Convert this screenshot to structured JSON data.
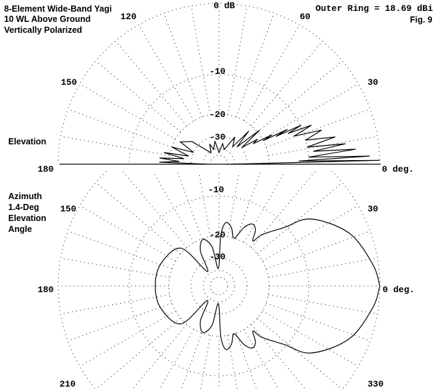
{
  "title_lines": [
    "8-Element Wide-Band Yagi",
    "10 WL Above Ground",
    "Vertically Polarized"
  ],
  "outer_ring": "Outer Ring = 18.69 dBi",
  "figure": "Fig. 9",
  "elevation_label": "Elevation",
  "azimuth_label_lines": [
    "Azimuth",
    "1.4-Deg",
    "Elevation",
    "Angle"
  ],
  "colors": {
    "trace": "#000000",
    "grid": "#000000",
    "background": "#ffffff"
  },
  "chart_data": [
    {
      "type": "polar-line",
      "name_label": "Elevation",
      "scale": "ARRL log (0.89 per 2 dB)",
      "rings_db": [
        0,
        -10,
        -20,
        -30,
        -40,
        -50
      ],
      "ring_labels": [
        "0 dB",
        "-10",
        "-20",
        "-30"
      ],
      "angle_labels": [
        "0 deg.",
        "30",
        "60",
        "120",
        "150",
        "180"
      ],
      "grid": true,
      "range_deg": [
        0,
        180
      ],
      "points": [
        [
          0,
          -45
        ],
        [
          1.4,
          0
        ],
        [
          2.3,
          -12
        ],
        [
          3.1,
          -1.1
        ],
        [
          4.5,
          -10
        ],
        [
          6.3,
          -2.7
        ],
        [
          7.8,
          -9
        ],
        [
          9.2,
          -3.9
        ],
        [
          11,
          -10
        ],
        [
          13.2,
          -5.1
        ],
        [
          15.5,
          -10
        ],
        [
          18.4,
          -6.8
        ],
        [
          20.5,
          -12
        ],
        [
          22.9,
          -8.1
        ],
        [
          24,
          -13
        ],
        [
          25.4,
          -9.8
        ],
        [
          26,
          -16
        ],
        [
          27,
          -12.7
        ],
        [
          28,
          -20
        ],
        [
          29,
          -16.7
        ],
        [
          31,
          -24
        ],
        [
          33,
          -21.5
        ],
        [
          36,
          -30
        ],
        [
          40,
          -19
        ],
        [
          44,
          -32
        ],
        [
          48,
          -22
        ],
        [
          52,
          -34
        ],
        [
          60,
          -28
        ],
        [
          70,
          -40
        ],
        [
          80,
          -35
        ],
        [
          90,
          -45
        ],
        [
          100,
          -33
        ],
        [
          110,
          -40
        ],
        [
          115,
          -34
        ],
        [
          125,
          -42
        ],
        [
          140,
          -26
        ],
        [
          150,
          -22
        ],
        [
          155,
          -30
        ],
        [
          160,
          -20
        ],
        [
          165,
          -28
        ],
        [
          168,
          -18
        ],
        [
          171,
          -26
        ],
        [
          174,
          -17
        ],
        [
          176,
          -24
        ],
        [
          178,
          -17
        ],
        [
          180,
          -45
        ]
      ]
    },
    {
      "type": "polar-line",
      "name_label": "Azimuth",
      "scale": "ARRL log (0.89 per 2 dB)",
      "rings_db": [
        0,
        -10,
        -20,
        -30,
        -40,
        -50
      ],
      "ring_labels": [
        "-10",
        "-20",
        "-30"
      ],
      "angle_labels": [
        "0 deg.",
        "30",
        "150",
        "180",
        "210",
        "330"
      ],
      "grid": true,
      "range_deg": [
        0,
        360
      ],
      "points": [
        [
          0,
          0
        ],
        [
          8,
          -0.6
        ],
        [
          22,
          -2.3
        ],
        [
          36,
          -5.9
        ],
        [
          42,
          -10.5
        ],
        [
          50,
          -15
        ],
        [
          53,
          -18
        ],
        [
          57,
          -15
        ],
        [
          62,
          -14.2
        ],
        [
          67,
          -16
        ],
        [
          72.5,
          -20
        ],
        [
          78,
          -17
        ],
        [
          84,
          -15.9
        ],
        [
          88,
          -20
        ],
        [
          92,
          -38
        ],
        [
          100,
          -24
        ],
        [
          109,
          -20.3
        ],
        [
          118,
          -24
        ],
        [
          129,
          -37
        ],
        [
          135,
          -18.9
        ],
        [
          159,
          -16.3
        ],
        [
          180,
          -15.9
        ],
        [
          201,
          -16.3
        ],
        [
          225,
          -18.9
        ],
        [
          231,
          -37
        ],
        [
          242,
          -24
        ],
        [
          251,
          -20.3
        ],
        [
          260,
          -24
        ],
        [
          268,
          -38
        ],
        [
          272,
          -20
        ],
        [
          276,
          -15.9
        ],
        [
          282,
          -17
        ],
        [
          287.5,
          -20
        ],
        [
          293,
          -16
        ],
        [
          298,
          -14.2
        ],
        [
          303,
          -15
        ],
        [
          307,
          -18
        ],
        [
          310,
          -15
        ],
        [
          318,
          -10.5
        ],
        [
          324,
          -5.9
        ],
        [
          338,
          -2.3
        ],
        [
          352,
          -0.6
        ],
        [
          360,
          0
        ]
      ]
    }
  ]
}
